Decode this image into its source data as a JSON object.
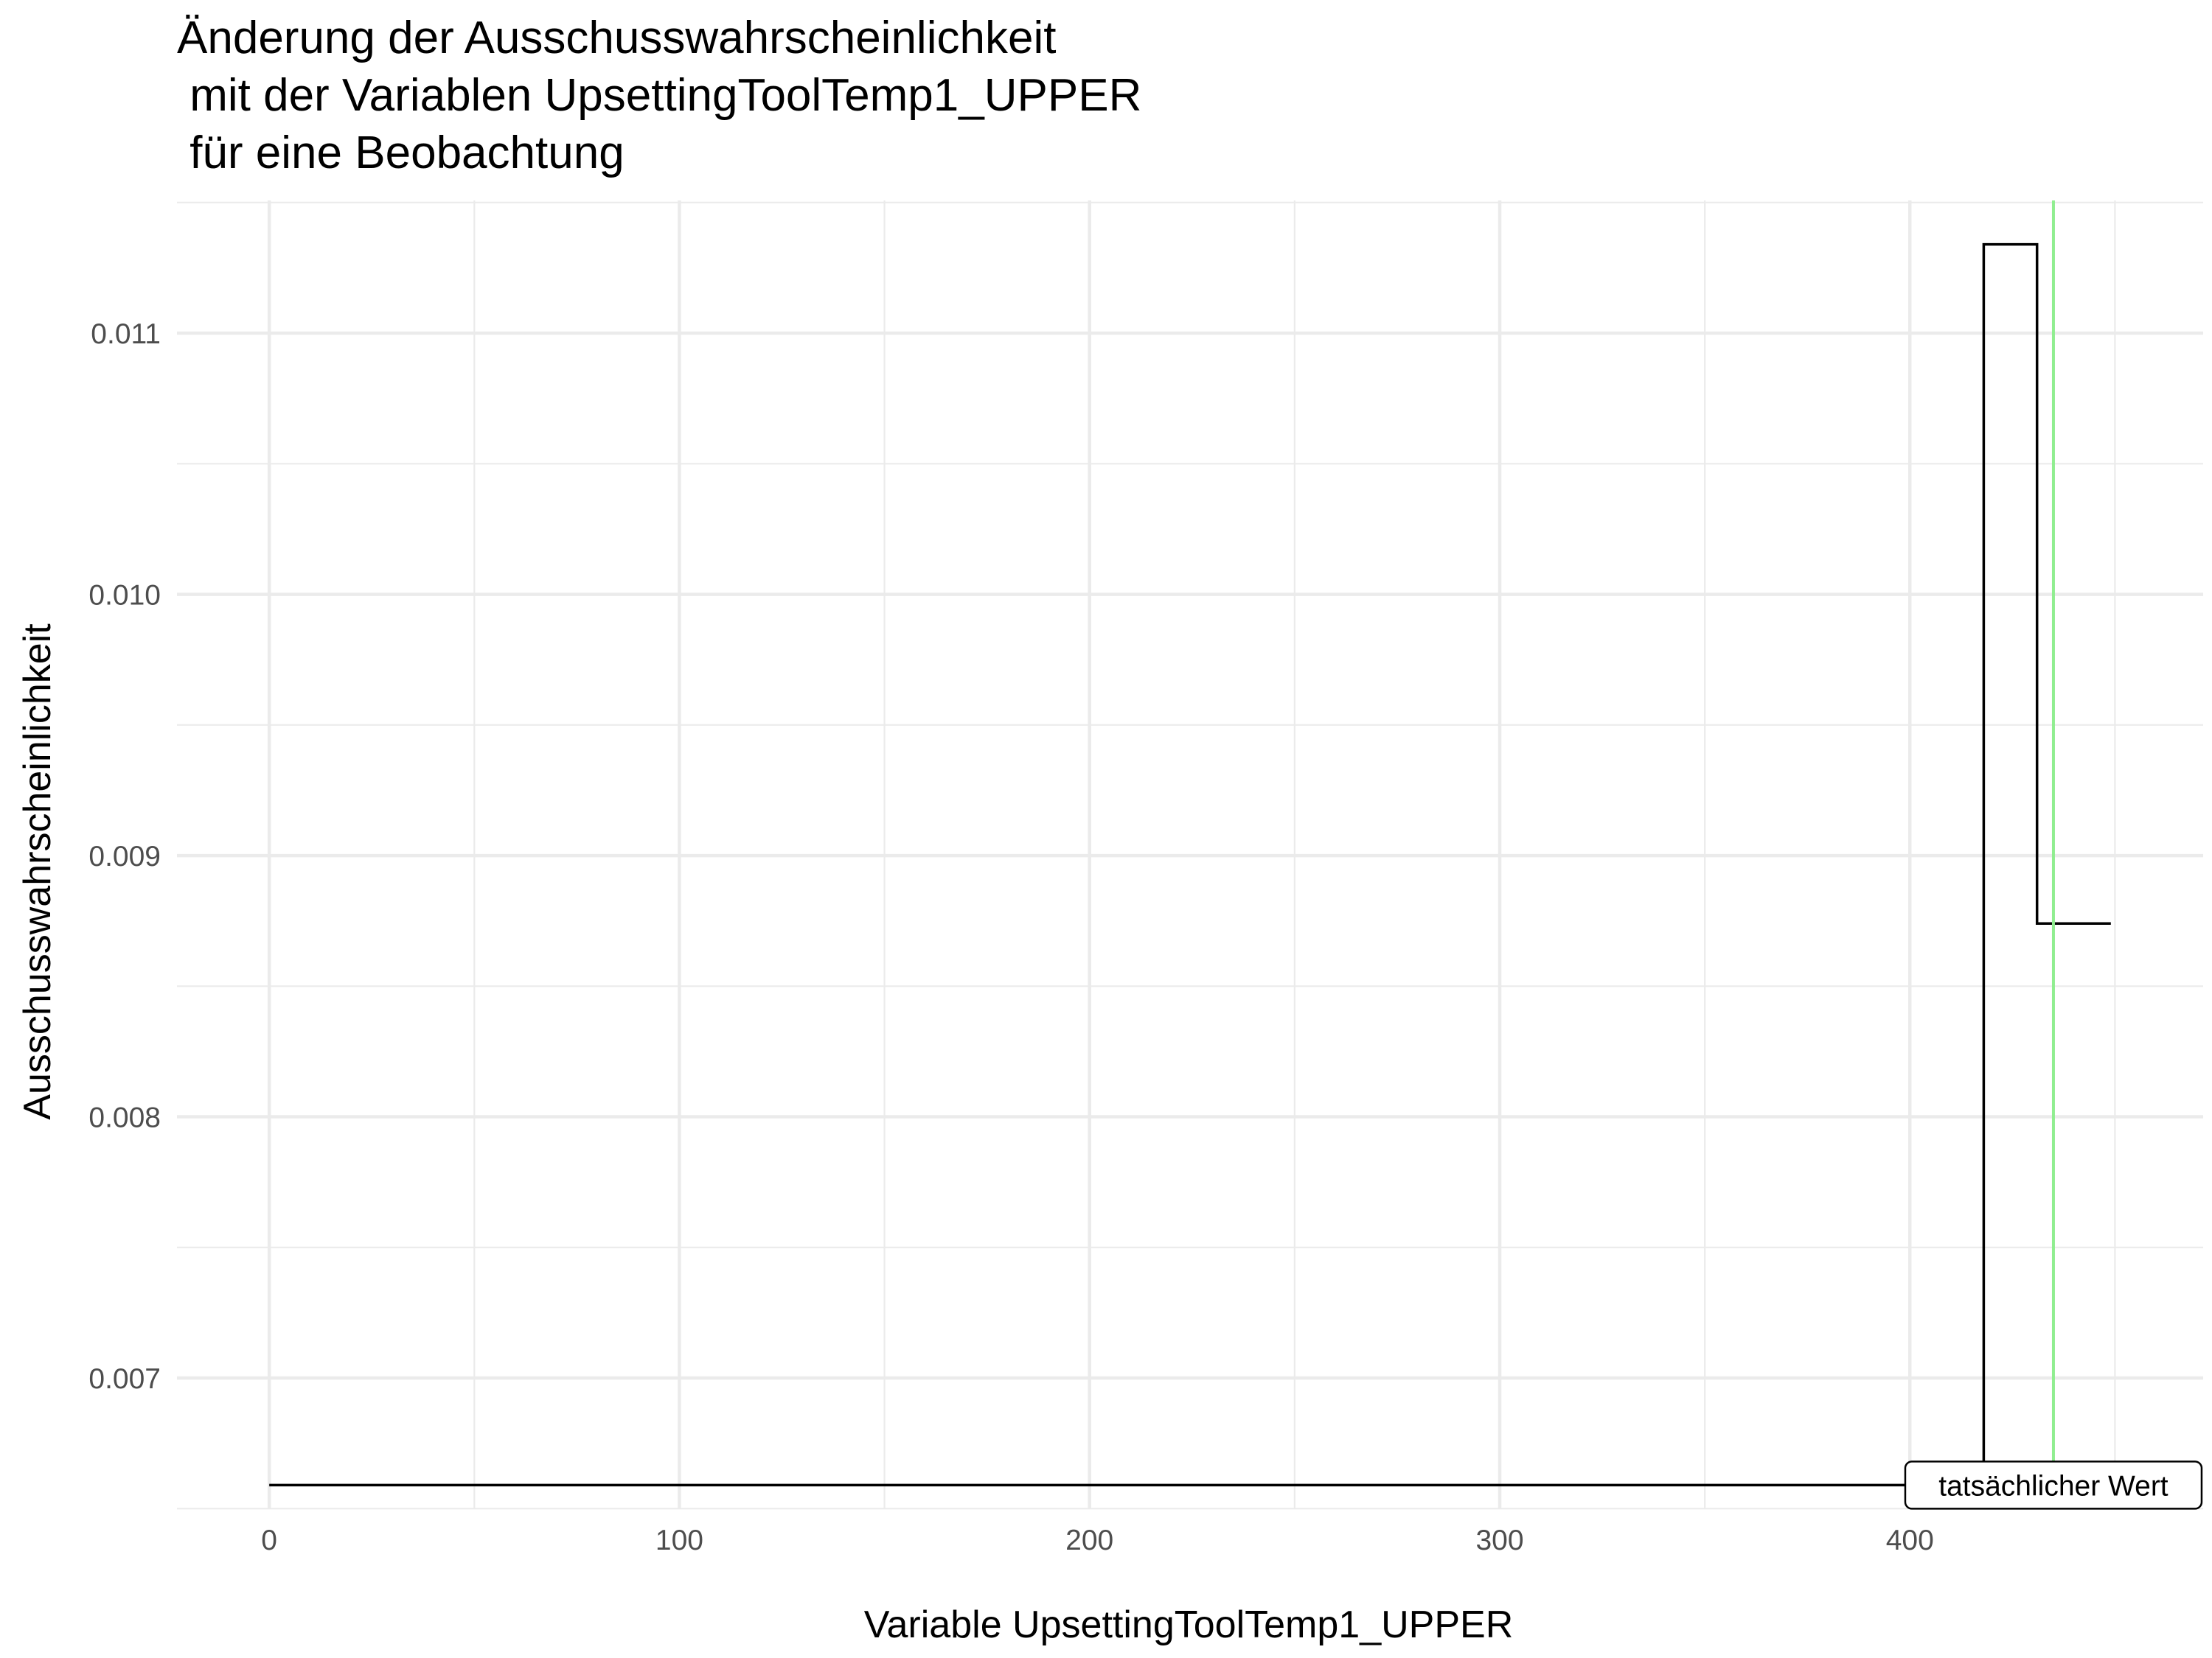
{
  "chart_data": {
    "type": "line",
    "title": [
      "Änderung der Ausschusswahrscheinlichkeit",
      " mit der Variablen UpsettingToolTemp1_UPPER",
      " für eine Beobachtung"
    ],
    "xlabel": "Variable UpsettingToolTemp1_UPPER",
    "ylabel": "Ausschusswahrscheinlichkeit",
    "xlim": [
      -22.5,
      471.5
    ],
    "ylim": [
      0.006498,
      0.011508
    ],
    "x_ticks": [
      0,
      100,
      200,
      300,
      400
    ],
    "x_tick_labels": [
      "0",
      "100",
      "200",
      "300",
      "400"
    ],
    "y_ticks": [
      0.007,
      0.008,
      0.009,
      0.01,
      0.011
    ],
    "y_tick_labels": [
      "0.007",
      "0.008",
      "0.009",
      "0.010",
      "0.011"
    ],
    "grid": true,
    "series": [
      {
        "line_style": "step",
        "color": "#000000",
        "x": [
          0,
          418,
          418,
          431,
          431,
          449
        ],
        "y": [
          0.00659,
          0.00659,
          0.01134,
          0.01134,
          0.00874,
          0.00874
        ]
      }
    ],
    "reference_line": {
      "orientation": "vertical",
      "x": 435,
      "color": "#90ee90",
      "label": "tatsächlicher Wert",
      "label_y": 0.00659
    }
  }
}
